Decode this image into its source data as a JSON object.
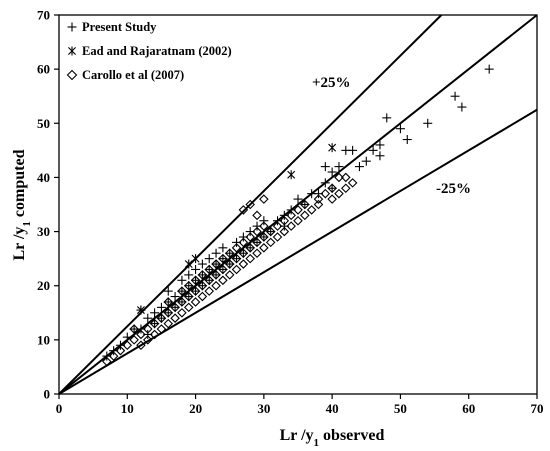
{
  "chart_data": {
    "type": "scatter",
    "xlabel": "Lr /y1 observed",
    "ylabel": "Lr /y1 computed",
    "xlim": [
      0,
      70
    ],
    "ylim": [
      0,
      70
    ],
    "x_ticks": [
      0,
      10,
      20,
      30,
      40,
      50,
      60,
      70
    ],
    "y_ticks": [
      0,
      10,
      20,
      30,
      40,
      50,
      60,
      70
    ],
    "grid": false,
    "legend_position": "top-left",
    "reference_lines": [
      {
        "label": "",
        "slope": 1.0
      },
      {
        "label": "+25%",
        "slope": 1.25
      },
      {
        "label": "-25%",
        "slope": 0.75
      }
    ],
    "series": [
      {
        "name": "Present Study",
        "marker": "plus",
        "points": [
          [
            7,
            7
          ],
          [
            8,
            8
          ],
          [
            9,
            9
          ],
          [
            10,
            10.5
          ],
          [
            11,
            12
          ],
          [
            12,
            12
          ],
          [
            12,
            15.5
          ],
          [
            13,
            11
          ],
          [
            13,
            14
          ],
          [
            14,
            13
          ],
          [
            14,
            15
          ],
          [
            15,
            14
          ],
          [
            15,
            16
          ],
          [
            16,
            15
          ],
          [
            16,
            17
          ],
          [
            16,
            19
          ],
          [
            17,
            16
          ],
          [
            17,
            18
          ],
          [
            18,
            17
          ],
          [
            18,
            19
          ],
          [
            18,
            21
          ],
          [
            19,
            18
          ],
          [
            19,
            20
          ],
          [
            19,
            22
          ],
          [
            20,
            19
          ],
          [
            20,
            21
          ],
          [
            20,
            23
          ],
          [
            21,
            20
          ],
          [
            21,
            22
          ],
          [
            21,
            24
          ],
          [
            22,
            21
          ],
          [
            22,
            23
          ],
          [
            22,
            25
          ],
          [
            23,
            22
          ],
          [
            23,
            24
          ],
          [
            23,
            26
          ],
          [
            24,
            23
          ],
          [
            24,
            25
          ],
          [
            24,
            27
          ],
          [
            25,
            24
          ],
          [
            25,
            26
          ],
          [
            26,
            25
          ],
          [
            26,
            28
          ],
          [
            27,
            26
          ],
          [
            27,
            29
          ],
          [
            28,
            27
          ],
          [
            28,
            30
          ],
          [
            29,
            28
          ],
          [
            29,
            31
          ],
          [
            30,
            29
          ],
          [
            30,
            32
          ],
          [
            31,
            30
          ],
          [
            32,
            32
          ],
          [
            33,
            33
          ],
          [
            33,
            31
          ],
          [
            34,
            34
          ],
          [
            35,
            36
          ],
          [
            36,
            35
          ],
          [
            37,
            37
          ],
          [
            38,
            37
          ],
          [
            39,
            39
          ],
          [
            39,
            42
          ],
          [
            40,
            38
          ],
          [
            40,
            41
          ],
          [
            41,
            42
          ],
          [
            42,
            45
          ],
          [
            43,
            45
          ],
          [
            44,
            42
          ],
          [
            45,
            43
          ],
          [
            46,
            45
          ],
          [
            47,
            44
          ],
          [
            47,
            46
          ],
          [
            48,
            51
          ],
          [
            50,
            49
          ],
          [
            51,
            47
          ],
          [
            54,
            50
          ],
          [
            58,
            55
          ],
          [
            59,
            53
          ],
          [
            63,
            60
          ]
        ]
      },
      {
        "name": "Ead and Rajaratnam (2002)",
        "marker": "asterisk",
        "points": [
          [
            12,
            15.5
          ],
          [
            19,
            24
          ],
          [
            20,
            25
          ],
          [
            34,
            40.5
          ],
          [
            40,
            45.5
          ]
        ]
      },
      {
        "name": "Carollo et al (2007)",
        "marker": "diamond",
        "points": [
          [
            7,
            6
          ],
          [
            8,
            7
          ],
          [
            9,
            8
          ],
          [
            10,
            9
          ],
          [
            11,
            10
          ],
          [
            11,
            12
          ],
          [
            12,
            9
          ],
          [
            12,
            11
          ],
          [
            13,
            10
          ],
          [
            13,
            12
          ],
          [
            14,
            11
          ],
          [
            14,
            13
          ],
          [
            15,
            12
          ],
          [
            15,
            14
          ],
          [
            16,
            13
          ],
          [
            16,
            15
          ],
          [
            16,
            17
          ],
          [
            17,
            14
          ],
          [
            17,
            16
          ],
          [
            18,
            15
          ],
          [
            18,
            17
          ],
          [
            18,
            19
          ],
          [
            19,
            16
          ],
          [
            19,
            18
          ],
          [
            19,
            20
          ],
          [
            20,
            17
          ],
          [
            20,
            19
          ],
          [
            20,
            21
          ],
          [
            21,
            18
          ],
          [
            21,
            20
          ],
          [
            21,
            22
          ],
          [
            22,
            19
          ],
          [
            22,
            21
          ],
          [
            22,
            23
          ],
          [
            23,
            20
          ],
          [
            23,
            22
          ],
          [
            23,
            24
          ],
          [
            24,
            21
          ],
          [
            24,
            23
          ],
          [
            24,
            25
          ],
          [
            25,
            22
          ],
          [
            25,
            24
          ],
          [
            25,
            26
          ],
          [
            26,
            23
          ],
          [
            26,
            25
          ],
          [
            26,
            27
          ],
          [
            27,
            24
          ],
          [
            27,
            26
          ],
          [
            27,
            28
          ],
          [
            27,
            34
          ],
          [
            28,
            25
          ],
          [
            28,
            27
          ],
          [
            28,
            29
          ],
          [
            28,
            35
          ],
          [
            29,
            26
          ],
          [
            29,
            28
          ],
          [
            29,
            30
          ],
          [
            29,
            33
          ],
          [
            30,
            27
          ],
          [
            30,
            29
          ],
          [
            30,
            31
          ],
          [
            30,
            36
          ],
          [
            31,
            28
          ],
          [
            31,
            30
          ],
          [
            32,
            29
          ],
          [
            32,
            31
          ],
          [
            33,
            30
          ],
          [
            33,
            32
          ],
          [
            34,
            31
          ],
          [
            34,
            33
          ],
          [
            35,
            32
          ],
          [
            35,
            34
          ],
          [
            36,
            33
          ],
          [
            36,
            35
          ],
          [
            37,
            34
          ],
          [
            38,
            35
          ],
          [
            38,
            36
          ],
          [
            39,
            37
          ],
          [
            40,
            36
          ],
          [
            40,
            38
          ],
          [
            41,
            37
          ],
          [
            41,
            40
          ],
          [
            42,
            38
          ],
          [
            42,
            40
          ],
          [
            43,
            39
          ]
        ]
      }
    ]
  }
}
